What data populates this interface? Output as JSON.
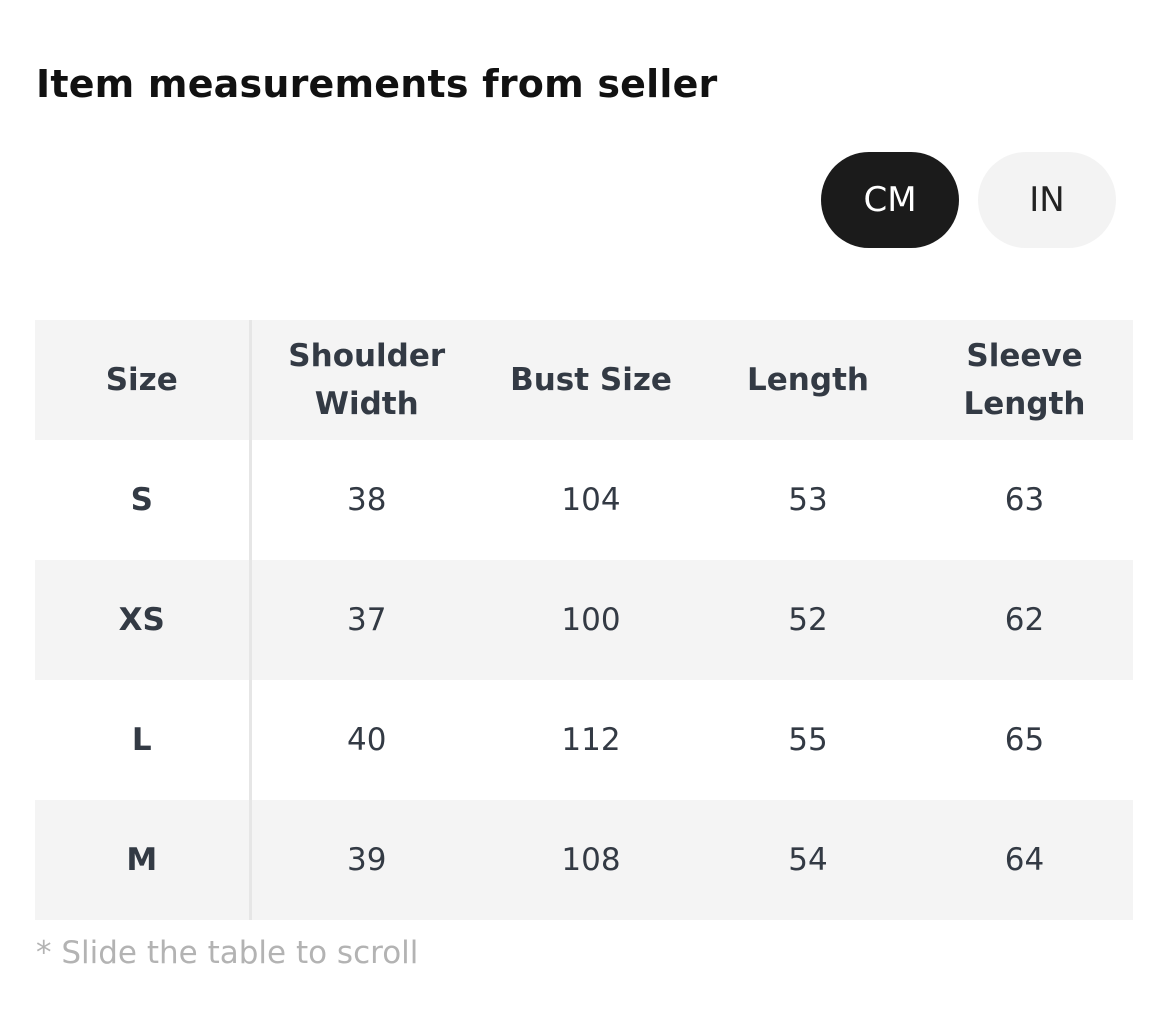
{
  "header": {
    "title": "Item measurements from seller"
  },
  "unit_toggle": {
    "options": [
      "CM",
      "IN"
    ],
    "selected": 0
  },
  "table": {
    "columns": [
      "Size",
      "Shoulder Width",
      "Bust Size",
      "Length",
      "Sleeve Length"
    ],
    "rows": [
      [
        "S",
        38,
        104,
        53,
        63
      ],
      [
        "XS",
        37,
        100,
        52,
        62
      ],
      [
        "L",
        40,
        112,
        55,
        65
      ],
      [
        "M",
        39,
        108,
        54,
        64
      ]
    ]
  },
  "footnote": "* Slide the table to scroll"
}
